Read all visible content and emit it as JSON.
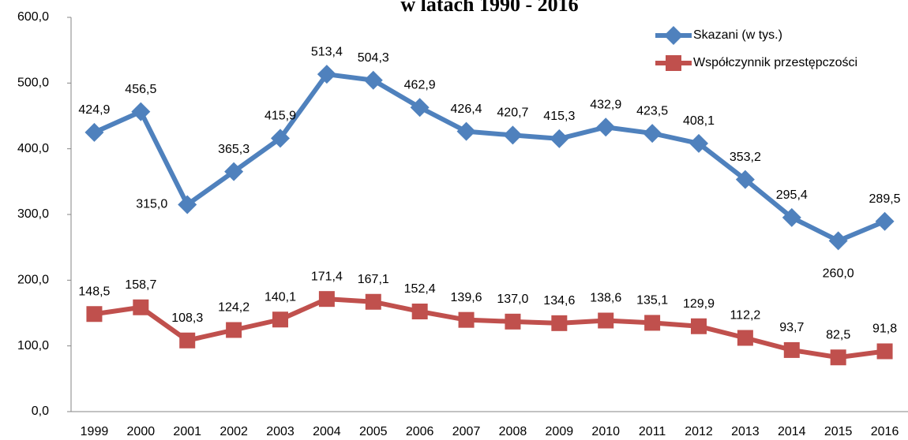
{
  "chart_data": {
    "type": "line",
    "title": "w latach 1990 - 2016",
    "categories": [
      "1999",
      "2000",
      "2001",
      "2002",
      "2003",
      "2004",
      "2005",
      "2006",
      "2007",
      "2008",
      "2009",
      "2010",
      "2011",
      "2012",
      "2013",
      "2014",
      "2015",
      "2016"
    ],
    "series": [
      {
        "name": "Skazani (w tys.)",
        "color": "#4f81bd",
        "marker": "diamond",
        "values": [
          424.9,
          456.5,
          315.0,
          365.3,
          415.9,
          513.4,
          504.3,
          462.9,
          426.4,
          420.7,
          415.3,
          432.9,
          423.5,
          408.1,
          353.2,
          295.4,
          260.0,
          289.5
        ],
        "value_labels": [
          "424,9",
          "456,5",
          "315,0",
          "365,3",
          "415,9",
          "513,4",
          "504,3",
          "462,9",
          "426,4",
          "420,7",
          "415,3",
          "432,9",
          "423,5",
          "408,1",
          "353,2",
          "295,4",
          "260,0",
          "289,5"
        ]
      },
      {
        "name": "Współczynnik przestępczości",
        "color": "#c0504d",
        "marker": "square",
        "values": [
          148.5,
          158.7,
          108.3,
          124.2,
          140.1,
          171.4,
          167.1,
          152.4,
          139.6,
          137.0,
          134.6,
          138.6,
          135.1,
          129.9,
          112.2,
          93.7,
          82.5,
          91.8
        ],
        "value_labels": [
          "148,5",
          "158,7",
          "108,3",
          "124,2",
          "140,1",
          "171,4",
          "167,1",
          "152,4",
          "139,6",
          "137,0",
          "134,6",
          "138,6",
          "135,1",
          "129,9",
          "112,2",
          "93,7",
          "82,5",
          "91,8"
        ]
      }
    ],
    "ylim": [
      0,
      600
    ],
    "yticks": [
      {
        "value": 0,
        "label": "0,0"
      },
      {
        "value": 100,
        "label": "100,0"
      },
      {
        "value": 200,
        "label": "200,0"
      },
      {
        "value": 300,
        "label": "300,0"
      },
      {
        "value": 400,
        "label": "400,0"
      },
      {
        "value": 500,
        "label": "500,0"
      },
      {
        "value": 600,
        "label": "600,0"
      }
    ],
    "legend": "top-right"
  }
}
